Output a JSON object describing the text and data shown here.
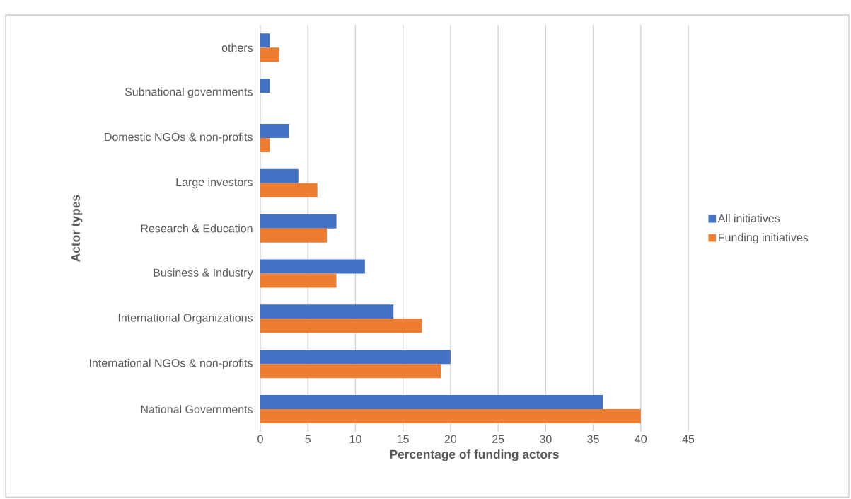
{
  "chart_data": {
    "type": "bar",
    "orientation": "horizontal",
    "categories": [
      "others",
      "Subnational governments",
      "Domestic NGOs & non-profits",
      "Large investors",
      "Research & Education",
      "Business & Industry",
      "International Organizations",
      "International NGOs & non-profits",
      "National Governments"
    ],
    "series": [
      {
        "name": "All initiatives",
        "color": "#4472c4",
        "values": [
          1,
          1,
          3,
          4,
          8,
          11,
          14,
          20,
          36
        ]
      },
      {
        "name": "Funding initiatives",
        "color": "#ed7d31",
        "values": [
          2,
          0,
          1,
          6,
          7,
          8,
          17,
          19,
          40
        ]
      }
    ],
    "xlim": [
      0,
      45
    ],
    "xticks": [
      0,
      5,
      10,
      15,
      20,
      25,
      30,
      35,
      40,
      45
    ],
    "xlabel": "Percentage of funding actors",
    "ylabel": "Actor types",
    "grid": "x",
    "legend": "right"
  }
}
